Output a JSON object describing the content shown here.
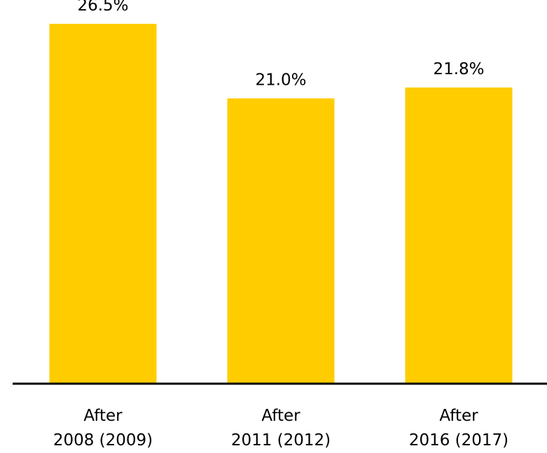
{
  "chart_data": {
    "type": "bar",
    "categories": [
      [
        "After",
        "2008 (2009)"
      ],
      [
        "After",
        "2011 (2012)"
      ],
      [
        "After",
        "2016 (2017)"
      ]
    ],
    "values": [
      26.5,
      21.0,
      21.8
    ],
    "value_labels": [
      "26.5%",
      "21.0%",
      "21.8%"
    ],
    "unit": "%",
    "ylim": [
      0,
      28.25
    ],
    "bar_color": "#FFCC00",
    "axis_color": "#000000",
    "grid": false,
    "legend": "none",
    "title": "",
    "xlabel": "",
    "ylabel": ""
  }
}
